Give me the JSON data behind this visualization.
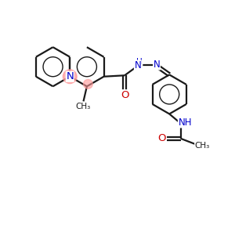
{
  "bg_color": "#ffffff",
  "bond_color": "#1a1a1a",
  "n_color": "#0000cc",
  "o_color": "#cc0000",
  "highlight_color": "#ff9999",
  "figsize": [
    3.0,
    3.0
  ],
  "dpi": 100,
  "xlim": [
    0,
    10
  ],
  "ylim": [
    0,
    10
  ]
}
